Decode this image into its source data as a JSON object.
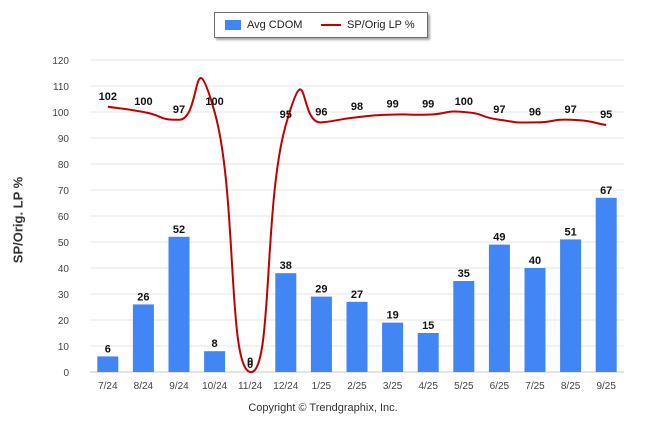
{
  "legend": {
    "bar_label": "Avg CDOM",
    "line_label": "SP/Orig LP %"
  },
  "copyright": "Copyright © Trendgraphix, Inc.",
  "colors": {
    "bar": "#4285f4",
    "line": "#c00000"
  },
  "chart_data": {
    "type": "bar",
    "title": "",
    "xlabel": "",
    "ylabel": "SP/Orig. LP %",
    "ylim": [
      0,
      120
    ],
    "yticks": [
      0,
      10,
      20,
      30,
      40,
      50,
      60,
      70,
      80,
      90,
      100,
      110,
      120
    ],
    "grid": true,
    "legend_position": "top-center",
    "categories": [
      "7/24",
      "8/24",
      "9/24",
      "10/24",
      "11/24",
      "12/24",
      "1/25",
      "2/25",
      "3/25",
      "4/25",
      "5/25",
      "6/25",
      "7/25",
      "8/25",
      "9/25"
    ],
    "series": [
      {
        "name": "Avg CDOM",
        "type": "bar",
        "values": [
          6,
          26,
          52,
          8,
          0,
          38,
          29,
          27,
          19,
          15,
          35,
          49,
          40,
          51,
          67
        ]
      },
      {
        "name": "SP/Orig LP %",
        "type": "line",
        "values": [
          102,
          100,
          97,
          100,
          0,
          95,
          96,
          98,
          99,
          99,
          100,
          97,
          96,
          97,
          95
        ]
      }
    ]
  }
}
